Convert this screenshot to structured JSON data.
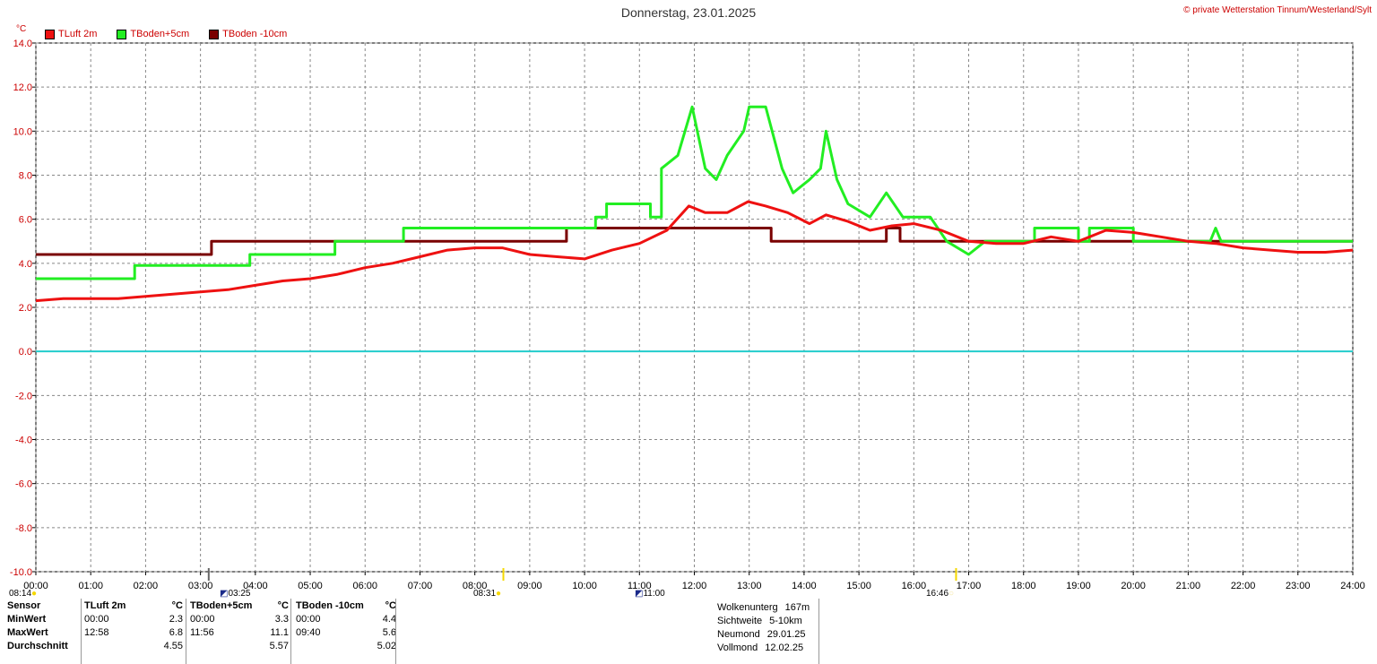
{
  "title": "Donnerstag, 23.01.2025",
  "copyright": "© private Wetterstation Tinnum/Westerland/Sylt",
  "unit": "°C",
  "legend": [
    {
      "label": "TLuft 2m",
      "color": "#ee1111"
    },
    {
      "label": "TBoden+5cm",
      "color": "#22ee22"
    },
    {
      "label": "TBoden -10cm",
      "color": "#7a0000"
    }
  ],
  "sun_events": {
    "sunrise": "08:14",
    "midday": "08:31",
    "moonrise": "03:25",
    "moonset": "11:00",
    "sunset": "16:46"
  },
  "stats": {
    "header": [
      "Sensor",
      "TLuft 2m",
      "°C",
      "TBoden+5cm",
      "°C",
      "TBoden -10cm",
      "°C"
    ],
    "rows": [
      {
        "label": "MinWert",
        "t1": "00:00",
        "v1": "2.3",
        "t2": "00:00",
        "v2": "3.3",
        "t3": "00:00",
        "v3": "4.4"
      },
      {
        "label": "MaxWert",
        "t1": "12:58",
        "v1": "6.8",
        "t2": "11:56",
        "v2": "11.1",
        "t3": "09:40",
        "v3": "5.6"
      },
      {
        "label": "Durchschnitt",
        "t1": "",
        "v1": "4.55",
        "t2": "",
        "v2": "5.57",
        "t3": "",
        "v3": "5.02"
      }
    ]
  },
  "extra": [
    {
      "label": "Wolkenunterg",
      "value": "167m"
    },
    {
      "label": "Sichtweite",
      "value": "5-10km"
    },
    {
      "label": "Neumond",
      "value": "29.01.25"
    },
    {
      "label": "Vollmond",
      "value": "12.02.25"
    }
  ],
  "chart_data": {
    "type": "line",
    "title": "Donnerstag, 23.01.2025",
    "ylabel": "°C",
    "ylim": [
      -10,
      14
    ],
    "xlim": [
      0,
      24
    ],
    "grid": true,
    "legend_position": "top-left",
    "y_ticks": [
      "14.0",
      "12.0",
      "10.0",
      "8.0",
      "6.0",
      "4.0",
      "2.0",
      "0.0",
      "-2.0",
      "-4.0",
      "-6.0",
      "-8.0",
      "-10.0"
    ],
    "x_ticks": [
      "00:00",
      "01:00",
      "02:00",
      "03:00",
      "04:00",
      "05:00",
      "06:00",
      "07:00",
      "08:00",
      "09:00",
      "10:00",
      "11:00",
      "12:00",
      "13:00",
      "14:00",
      "15:00",
      "16:00",
      "17:00",
      "18:00",
      "19:00",
      "20:00",
      "21:00",
      "22:00",
      "23:00",
      "24:00"
    ],
    "zero_line_color": "#22cccc",
    "series": [
      {
        "name": "TLuft 2m",
        "color": "#ee1111",
        "points": [
          [
            0,
            2.3
          ],
          [
            0.5,
            2.4
          ],
          [
            1,
            2.4
          ],
          [
            1.5,
            2.4
          ],
          [
            2,
            2.5
          ],
          [
            2.5,
            2.6
          ],
          [
            3,
            2.7
          ],
          [
            3.5,
            2.8
          ],
          [
            4,
            3.0
          ],
          [
            4.5,
            3.2
          ],
          [
            5,
            3.3
          ],
          [
            5.5,
            3.5
          ],
          [
            6,
            3.8
          ],
          [
            6.5,
            4.0
          ],
          [
            7,
            4.3
          ],
          [
            7.5,
            4.6
          ],
          [
            8,
            4.7
          ],
          [
            8.5,
            4.7
          ],
          [
            9,
            4.4
          ],
          [
            9.5,
            4.3
          ],
          [
            10,
            4.2
          ],
          [
            10.5,
            4.6
          ],
          [
            11,
            4.9
          ],
          [
            11.5,
            5.5
          ],
          [
            11.9,
            6.6
          ],
          [
            12.2,
            6.3
          ],
          [
            12.6,
            6.3
          ],
          [
            12.98,
            6.8
          ],
          [
            13.3,
            6.6
          ],
          [
            13.7,
            6.3
          ],
          [
            14.1,
            5.8
          ],
          [
            14.4,
            6.2
          ],
          [
            14.8,
            5.9
          ],
          [
            15.2,
            5.5
          ],
          [
            15.6,
            5.7
          ],
          [
            16,
            5.8
          ],
          [
            16.5,
            5.5
          ],
          [
            17,
            5.0
          ],
          [
            17.5,
            4.9
          ],
          [
            18,
            4.9
          ],
          [
            18.5,
            5.2
          ],
          [
            19,
            5.0
          ],
          [
            19.5,
            5.5
          ],
          [
            20,
            5.4
          ],
          [
            20.5,
            5.2
          ],
          [
            21,
            5.0
          ],
          [
            21.5,
            4.9
          ],
          [
            22,
            4.7
          ],
          [
            22.5,
            4.6
          ],
          [
            23,
            4.5
          ],
          [
            23.5,
            4.5
          ],
          [
            24,
            4.6
          ]
        ]
      },
      {
        "name": "TBoden+5cm",
        "color": "#22ee22",
        "points": [
          [
            0,
            3.3
          ],
          [
            1.8,
            3.3
          ],
          [
            1.8,
            3.9
          ],
          [
            3.9,
            3.9
          ],
          [
            3.9,
            4.4
          ],
          [
            5.45,
            4.4
          ],
          [
            5.45,
            5.0
          ],
          [
            6.7,
            5.0
          ],
          [
            6.7,
            5.6
          ],
          [
            10.2,
            5.6
          ],
          [
            10.2,
            6.1
          ],
          [
            10.4,
            6.1
          ],
          [
            10.4,
            6.7
          ],
          [
            11.2,
            6.7
          ],
          [
            11.2,
            6.1
          ],
          [
            11.4,
            6.1
          ],
          [
            11.4,
            8.3
          ],
          [
            11.7,
            8.9
          ],
          [
            11.96,
            11.1
          ],
          [
            12.2,
            8.3
          ],
          [
            12.4,
            7.8
          ],
          [
            12.6,
            8.9
          ],
          [
            12.9,
            10.0
          ],
          [
            13.0,
            11.1
          ],
          [
            13.3,
            11.1
          ],
          [
            13.6,
            8.3
          ],
          [
            13.8,
            7.2
          ],
          [
            14.1,
            7.8
          ],
          [
            14.3,
            8.3
          ],
          [
            14.4,
            10.0
          ],
          [
            14.6,
            7.8
          ],
          [
            14.8,
            6.7
          ],
          [
            15.2,
            6.1
          ],
          [
            15.5,
            7.2
          ],
          [
            15.8,
            6.1
          ],
          [
            16.3,
            6.1
          ],
          [
            16.6,
            5.0
          ],
          [
            17.0,
            4.4
          ],
          [
            17.3,
            5.0
          ],
          [
            18.2,
            5.0
          ],
          [
            18.2,
            5.6
          ],
          [
            19.0,
            5.6
          ],
          [
            19.0,
            5.0
          ],
          [
            19.2,
            5.0
          ],
          [
            19.2,
            5.6
          ],
          [
            20.0,
            5.6
          ],
          [
            20.0,
            5.0
          ],
          [
            21.4,
            5.0
          ],
          [
            21.5,
            5.6
          ],
          [
            21.6,
            5.0
          ],
          [
            24,
            5.0
          ]
        ]
      },
      {
        "name": "TBoden -10cm",
        "color": "#7a0000",
        "points": [
          [
            0,
            4.4
          ],
          [
            3.2,
            4.4
          ],
          [
            3.2,
            5.0
          ],
          [
            9.67,
            5.0
          ],
          [
            9.67,
            5.6
          ],
          [
            13.4,
            5.6
          ],
          [
            13.4,
            5.0
          ],
          [
            15.5,
            5.0
          ],
          [
            15.5,
            5.6
          ],
          [
            15.75,
            5.6
          ],
          [
            15.75,
            5.0
          ],
          [
            24,
            5.0
          ]
        ]
      }
    ]
  }
}
